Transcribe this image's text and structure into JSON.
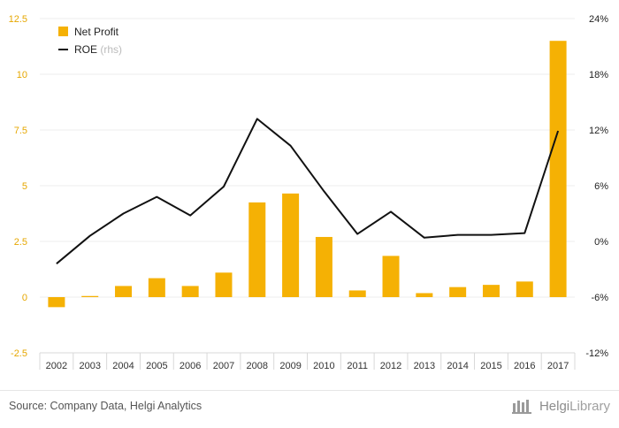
{
  "colors": {
    "bar": "#f5b104",
    "line": "#111111",
    "left_axis_text": "#e6a700",
    "right_axis_text": "#222222",
    "grid": "#eeeeee",
    "legend_muted": "#bbbbbb"
  },
  "chart_data": {
    "type": "bar+line",
    "categories": [
      "2002",
      "2003",
      "2004",
      "2005",
      "2006",
      "2007",
      "2008",
      "2009",
      "2010",
      "2011",
      "2012",
      "2013",
      "2014",
      "2015",
      "2016",
      "2017"
    ],
    "series": [
      {
        "name": "Net Profit",
        "type": "bar",
        "axis": "left",
        "values": [
          -0.45,
          0.05,
          0.5,
          0.85,
          0.5,
          1.1,
          4.25,
          4.65,
          2.7,
          0.3,
          1.85,
          0.18,
          0.45,
          0.55,
          0.7,
          11.5
        ]
      },
      {
        "name": "ROE",
        "type": "line",
        "axis": "right",
        "values": [
          -2.4,
          0.6,
          3.0,
          4.8,
          2.8,
          5.9,
          13.2,
          10.3,
          5.4,
          0.8,
          3.2,
          0.4,
          0.7,
          0.7,
          0.9,
          11.9
        ]
      }
    ],
    "left_axis": {
      "ylim": [
        -2.5,
        12.5
      ],
      "ticks": [
        "12.5",
        "10",
        "7.5",
        "5",
        "2.5",
        "0",
        "-2.5"
      ]
    },
    "right_axis": {
      "ylim": [
        -12,
        24
      ],
      "ticks": [
        "24%",
        "18%",
        "12%",
        "6%",
        "0%",
        "-6%",
        "-12%"
      ]
    },
    "legend": {
      "position": "top-left",
      "items": [
        {
          "label": "Net Profit",
          "suffix": ""
        },
        {
          "label": "ROE",
          "suffix": "(rhs)"
        }
      ]
    },
    "grid": true
  },
  "footer": {
    "source": "Source: Company Data, Helgi Analytics",
    "brand_part1": "Helgi",
    "brand_part2": "Library"
  }
}
